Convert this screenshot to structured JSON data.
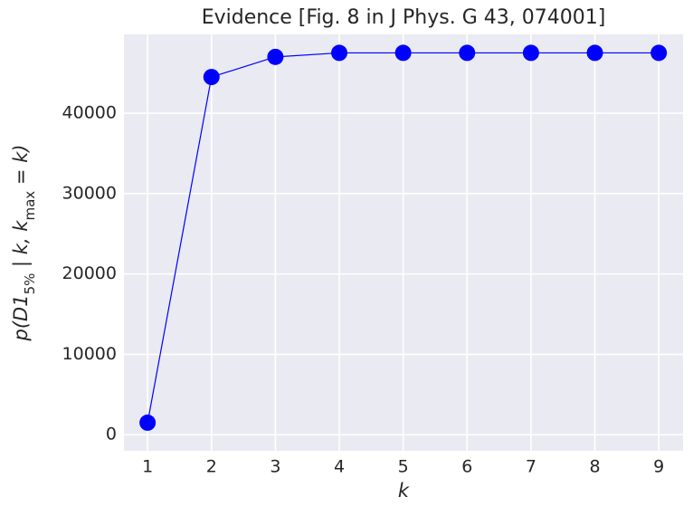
{
  "chart_data": {
    "type": "line",
    "title": "Evidence [Fig. 8 in J Phys. G 43, 074001]",
    "xlabel": "k",
    "ylabel": [
      {
        "text": "p(D1"
      },
      {
        "text": "5%",
        "sub": true
      },
      {
        "text": " | k, k"
      },
      {
        "text": "max",
        "sub": true
      },
      {
        "text": " = k)"
      }
    ],
    "x": [
      1,
      2,
      3,
      4,
      5,
      6,
      7,
      8,
      9
    ],
    "series": [
      {
        "name": "evidence",
        "color": "#0000ff",
        "values": [
          1500,
          44500,
          47000,
          47500,
          47500,
          47500,
          47500,
          47500,
          47500
        ]
      }
    ],
    "xlim": [
      0.63,
      9.38
    ],
    "ylim": [
      -2000,
      49800
    ],
    "xticks": [
      1,
      2,
      3,
      4,
      5,
      6,
      7,
      8,
      9
    ],
    "yticks": [
      0,
      10000,
      20000,
      30000,
      40000
    ],
    "grid": true
  }
}
